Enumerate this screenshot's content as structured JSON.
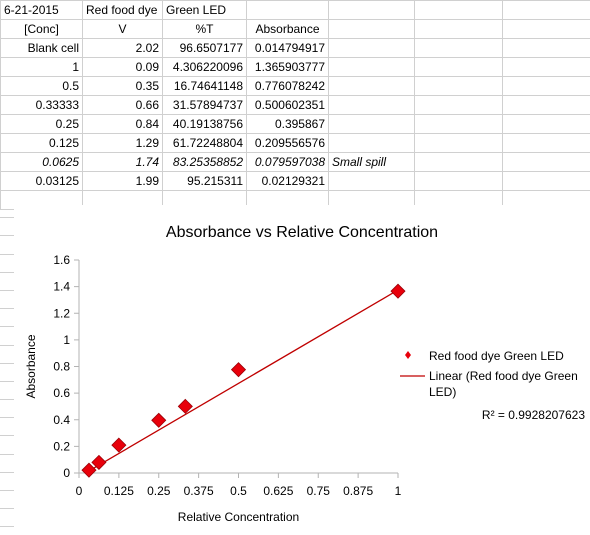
{
  "spreadsheet": {
    "header_row": [
      "6-21-2015",
      "Red food dye",
      "Green LED",
      "",
      ""
    ],
    "columns": [
      "[Conc]",
      "V",
      "%T",
      "Absorbance",
      ""
    ],
    "rows": [
      {
        "conc": "Blank cell",
        "v": "2.02",
        "t": "96.6507177",
        "abs": "0.014794917",
        "note": "",
        "italic": false
      },
      {
        "conc": "1",
        "v": "0.09",
        "t": "4.306220096",
        "abs": "1.365903777",
        "note": "",
        "italic": false
      },
      {
        "conc": "0.5",
        "v": "0.35",
        "t": "16.74641148",
        "abs": "0.776078242",
        "note": "",
        "italic": false
      },
      {
        "conc": "0.33333",
        "v": "0.66",
        "t": "31.57894737",
        "abs": "0.500602351",
        "note": "",
        "italic": false
      },
      {
        "conc": "0.25",
        "v": "0.84",
        "t": "40.19138756",
        "abs": "0.395867",
        "note": "",
        "italic": false
      },
      {
        "conc": "0.125",
        "v": "1.29",
        "t": "61.72248804",
        "abs": "0.209556576",
        "note": "",
        "italic": false
      },
      {
        "conc": "0.0625",
        "v": "1.74",
        "t": "83.25358852",
        "abs": "0.079597038",
        "note": "Small spill",
        "italic": true
      },
      {
        "conc": "0.03125",
        "v": "1.99",
        "t": "95.215311",
        "abs": "0.02129321",
        "note": "",
        "italic": false
      }
    ]
  },
  "chart_data": {
    "type": "scatter",
    "title": "Absorbance vs Relative Concentration",
    "xlabel": "Relative Concentration",
    "ylabel": "Absorbance",
    "xlim": [
      0,
      1
    ],
    "ylim": [
      0,
      1.6
    ],
    "xticks": [
      "0",
      "0.125",
      "0.25",
      "0.375",
      "0.5",
      "0.625",
      "0.75",
      "0.875",
      "1"
    ],
    "yticks": [
      "0",
      "0.2",
      "0.4",
      "0.6",
      "0.8",
      "1",
      "1.2",
      "1.4",
      "1.6"
    ],
    "series": [
      {
        "name": "Red food dye Green LED",
        "color": "#e8000b",
        "x": [
          1,
          0.5,
          0.33333,
          0.25,
          0.125,
          0.0625,
          0.03125
        ],
        "y": [
          1.365903777,
          0.776078242,
          0.500602351,
          0.395867,
          0.209556576,
          0.079597038,
          0.02129321
        ]
      }
    ],
    "trendline": {
      "name": "Linear (Red food dye Green LED)",
      "color": "#c00000",
      "type": "linear",
      "x": [
        0.03125,
        1
      ],
      "y": [
        0.0154,
        1.3747
      ]
    },
    "r_squared_label": "R² = 0.9928207623",
    "legend_position": "right",
    "grid": false
  }
}
